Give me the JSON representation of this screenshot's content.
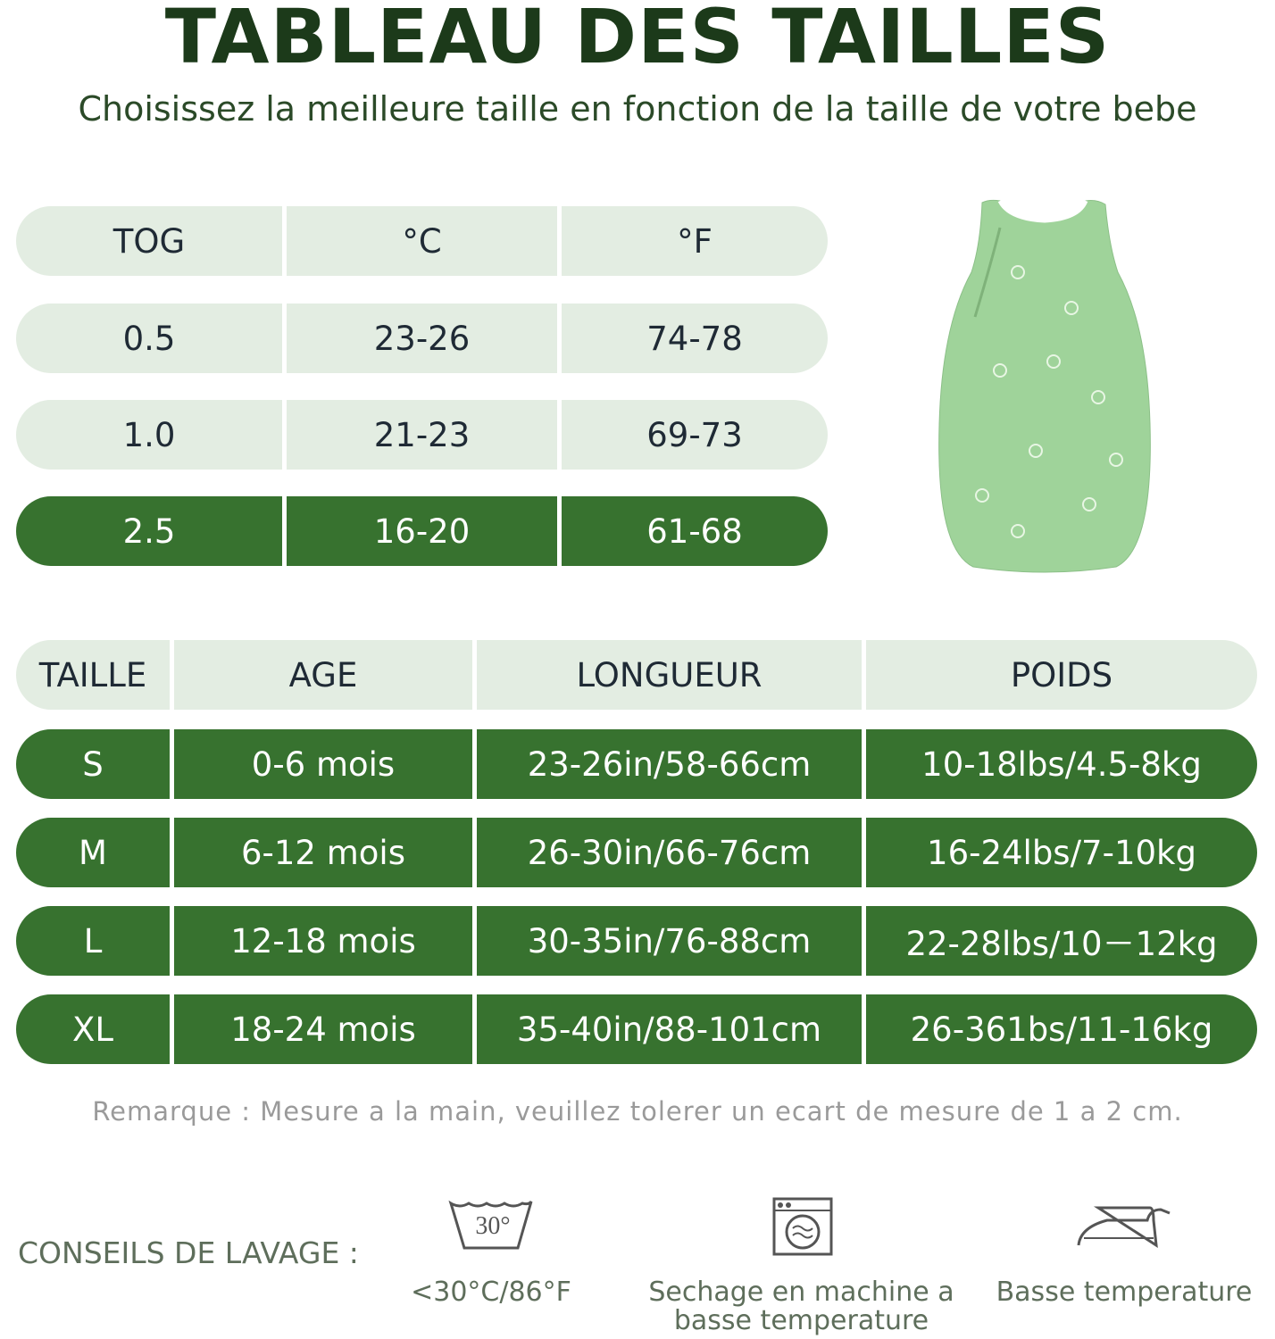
{
  "header": {
    "title": "TABLEAU DES TAILLES",
    "subtitle": "Choisissez la meilleure taille en fonction de la taille de votre bebe"
  },
  "tog_table": {
    "header": [
      "TOG",
      "°C",
      "°F"
    ],
    "rows": [
      [
        "0.5",
        "23-26",
        "74-78"
      ],
      [
        "1.0",
        "21-23",
        "69-73"
      ],
      [
        "2.5",
        "16-20",
        "61-68"
      ]
    ]
  },
  "size_table": {
    "header": [
      "TAILLE",
      "AGE",
      "LONGUEUR",
      "POIDS"
    ],
    "rows": [
      [
        "S",
        "0-6 mois",
        "23-26in/58-66cm",
        "10-18lbs/4.5-8kg"
      ],
      [
        "M",
        "6-12 mois",
        "26-30in/66-76cm",
        "16-24lbs/7-10kg"
      ],
      [
        "L",
        "12-18 mois",
        "30-35in/76-88cm",
        "22-28lbs/10－12kg"
      ],
      [
        "XL",
        "18-24 mois",
        "35-40in/88-101cm",
        "26-361bs/11-16kg"
      ]
    ]
  },
  "note": "Remarque : Mesure a la main, veuillez tolerer un ecart de mesure de 1 a 2 cm.",
  "washing": {
    "label": "CONSEILS DE LAVAGE :",
    "items": [
      {
        "icon_label": "30°",
        "text": "<30°C/86°F"
      },
      {
        "text": "Sechage en machine a basse temperature"
      },
      {
        "text": "Basse temperature"
      }
    ]
  }
}
